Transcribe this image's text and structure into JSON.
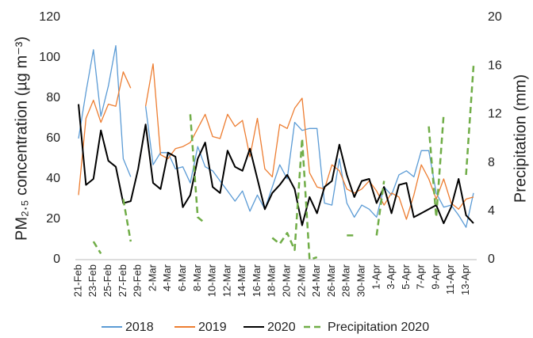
{
  "chart_data": {
    "type": "line",
    "y_label": "PM₂.₅ concentration (µg m⁻³)",
    "y2_label": "Precipitation (mm)",
    "categories": [
      "21-Feb",
      null,
      "23-Feb",
      null,
      "25-Feb",
      null,
      "27-Feb",
      null,
      "29-Feb",
      null,
      "2-Mar",
      null,
      "4-Mar",
      null,
      "6-Mar",
      null,
      "8-Mar",
      null,
      "10-Mar",
      null,
      "12-Mar",
      null,
      "14-Mar",
      null,
      "16-Mar",
      null,
      "18-Mar",
      null,
      "20-Mar",
      null,
      "22-Mar",
      null,
      "24-Mar",
      null,
      "26-Mar",
      null,
      "28-Mar",
      null,
      "30-Mar",
      null,
      "1-Apr",
      null,
      "3-Apr",
      null,
      "5-Apr",
      null,
      "7-Apr",
      null,
      "9-Apr",
      null,
      "11-Apr",
      null,
      "13-Apr",
      null
    ],
    "ylim": [
      0,
      120
    ],
    "yticks": [
      0,
      20,
      40,
      60,
      80,
      100,
      120
    ],
    "y2lim": [
      0,
      20
    ],
    "y2ticks": [
      0,
      4,
      8,
      12,
      16,
      20
    ],
    "series": [
      {
        "name": "2018",
        "color": "#5b9bd5",
        "values": [
          60,
          83,
          104,
          71,
          86,
          106,
          50,
          41,
          null,
          76,
          47,
          53,
          53,
          45,
          46,
          38,
          56,
          46,
          44,
          39,
          34,
          29,
          34,
          24,
          32,
          25,
          36,
          47,
          40,
          68,
          64,
          65,
          65,
          28,
          27,
          50,
          28,
          21,
          27,
          25,
          21,
          36,
          32,
          42,
          44,
          41,
          54,
          54,
          33,
          26,
          27,
          22,
          16,
          33
        ]
      },
      {
        "name": "2019",
        "color": "#ed7d31",
        "values": [
          32,
          70,
          79,
          68,
          77,
          76,
          93,
          85,
          null,
          76,
          97,
          52,
          50,
          55,
          56,
          58,
          65,
          72,
          61,
          60,
          72,
          66,
          69,
          51,
          70,
          45,
          41,
          67,
          65,
          75,
          80,
          43,
          36,
          35,
          47,
          44,
          35,
          33,
          35,
          39,
          34,
          27,
          33,
          31,
          20,
          32,
          47,
          40,
          30,
          40,
          28,
          25,
          30,
          31
        ]
      },
      {
        "name": "2020",
        "color": "#000000",
        "values": [
          77,
          37,
          40,
          64,
          49,
          46,
          28,
          29,
          45,
          67,
          38,
          35,
          53,
          51,
          26,
          32,
          50,
          58,
          36,
          33,
          54,
          46,
          44,
          55,
          40,
          25,
          33,
          37,
          42,
          35,
          17,
          31,
          23,
          36,
          39,
          57,
          42,
          31,
          39,
          40,
          28,
          36,
          23,
          37,
          38,
          21,
          23,
          25,
          27,
          18,
          26,
          40,
          22,
          18
        ]
      },
      {
        "name": "Precipitation 2020",
        "color": "#70ad47",
        "axis": "y2",
        "dashed": true,
        "values": [
          null,
          null,
          1.5,
          0.5,
          null,
          null,
          5,
          1.5,
          null,
          null,
          null,
          null,
          null,
          null,
          null,
          12,
          3.5,
          3,
          null,
          null,
          null,
          null,
          null,
          null,
          null,
          null,
          1.8,
          1.3,
          2.2,
          0.8,
          10,
          0,
          0.2,
          null,
          null,
          null,
          2,
          2,
          null,
          null,
          2,
          6.5,
          null,
          null,
          null,
          null,
          null,
          11,
          3.5,
          12,
          null,
          null,
          7,
          16
        ]
      }
    ]
  }
}
